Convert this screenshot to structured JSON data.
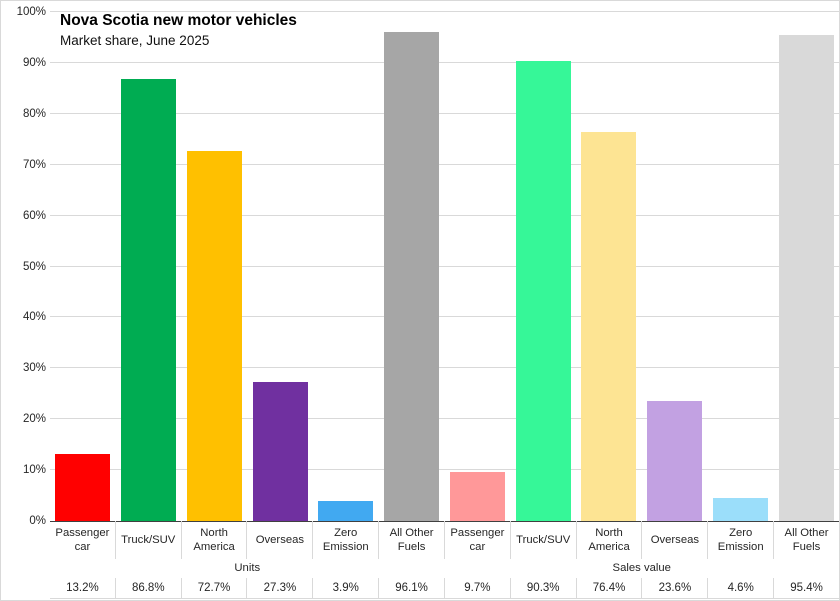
{
  "chart_data": {
    "type": "bar",
    "title": "Nova Scotia new motor vehicles",
    "subtitle": "Market share, June 2025",
    "ylabel": "",
    "ylim": [
      0,
      100
    ],
    "grid": true,
    "legend": "none",
    "yticks": [
      "0%",
      "10%",
      "20%",
      "30%",
      "40%",
      "50%",
      "60%",
      "70%",
      "80%",
      "90%",
      "100%"
    ],
    "categories": [
      "Passenger car",
      "Truck/SUV",
      "North America",
      "Overseas",
      "Zero Emission",
      "All Other Fuels"
    ],
    "groups": [
      {
        "label": "Units",
        "values": [
          13.2,
          86.8,
          72.7,
          27.3,
          3.9,
          96.1
        ],
        "value_labels": [
          "13.2%",
          "86.8%",
          "72.7%",
          "27.3%",
          "3.9%",
          "96.1%"
        ],
        "colors": [
          "#ff0000",
          "#00ac52",
          "#ffc000",
          "#7030a0",
          "#41a9f1",
          "#a6a6a6"
        ]
      },
      {
        "label": "Sales value",
        "values": [
          9.7,
          90.3,
          76.4,
          23.6,
          4.6,
          95.4
        ],
        "value_labels": [
          "9.7%",
          "90.3%",
          "76.4%",
          "23.6%",
          "4.6%",
          "95.4%"
        ],
        "colors": [
          "#ff9899",
          "#36f798",
          "#fde493",
          "#c2a1e2",
          "#9bdefa",
          "#d9d9d9"
        ]
      }
    ],
    "axis_colors": {
      "gridline": "#d9d9d9",
      "baseline": "#404040",
      "table_divider": "#d9d9d9"
    }
  }
}
